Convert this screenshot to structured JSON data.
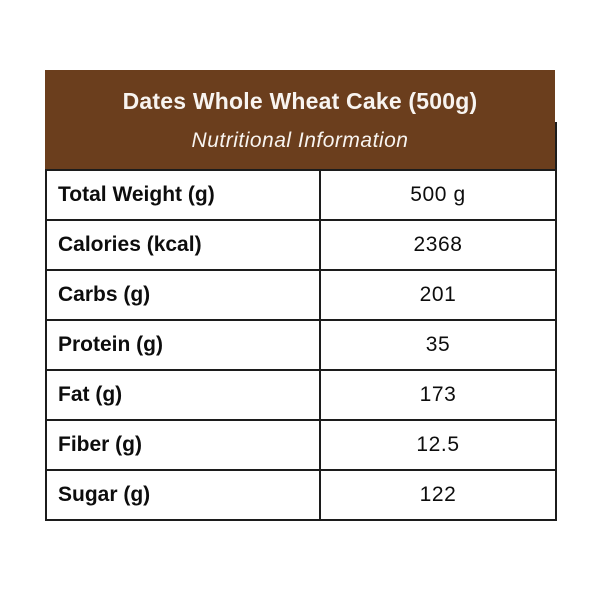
{
  "header": {
    "title": "Dates Whole Wheat Cake (500g)",
    "subtitle": "Nutritional Information"
  },
  "table": {
    "rows": [
      {
        "label": "Total Weight (g)",
        "value": "500 g"
      },
      {
        "label": "Calories (kcal)",
        "value": "2368"
      },
      {
        "label": "Carbs (g)",
        "value": "201"
      },
      {
        "label": "Protein (g)",
        "value": "35"
      },
      {
        "label": "Fat (g)",
        "value": "173"
      },
      {
        "label": "Fiber (g)",
        "value": "12.5"
      },
      {
        "label": "Sugar (g)",
        "value": "122"
      }
    ]
  },
  "colors": {
    "page_bg": "#ffffff",
    "header_bg": "#6b3e1d",
    "header_text": "#f8f4f0",
    "grid_border": "#1c1c1c",
    "first_row_border": "#7b4a22",
    "body_text": "#0d0d0d"
  }
}
